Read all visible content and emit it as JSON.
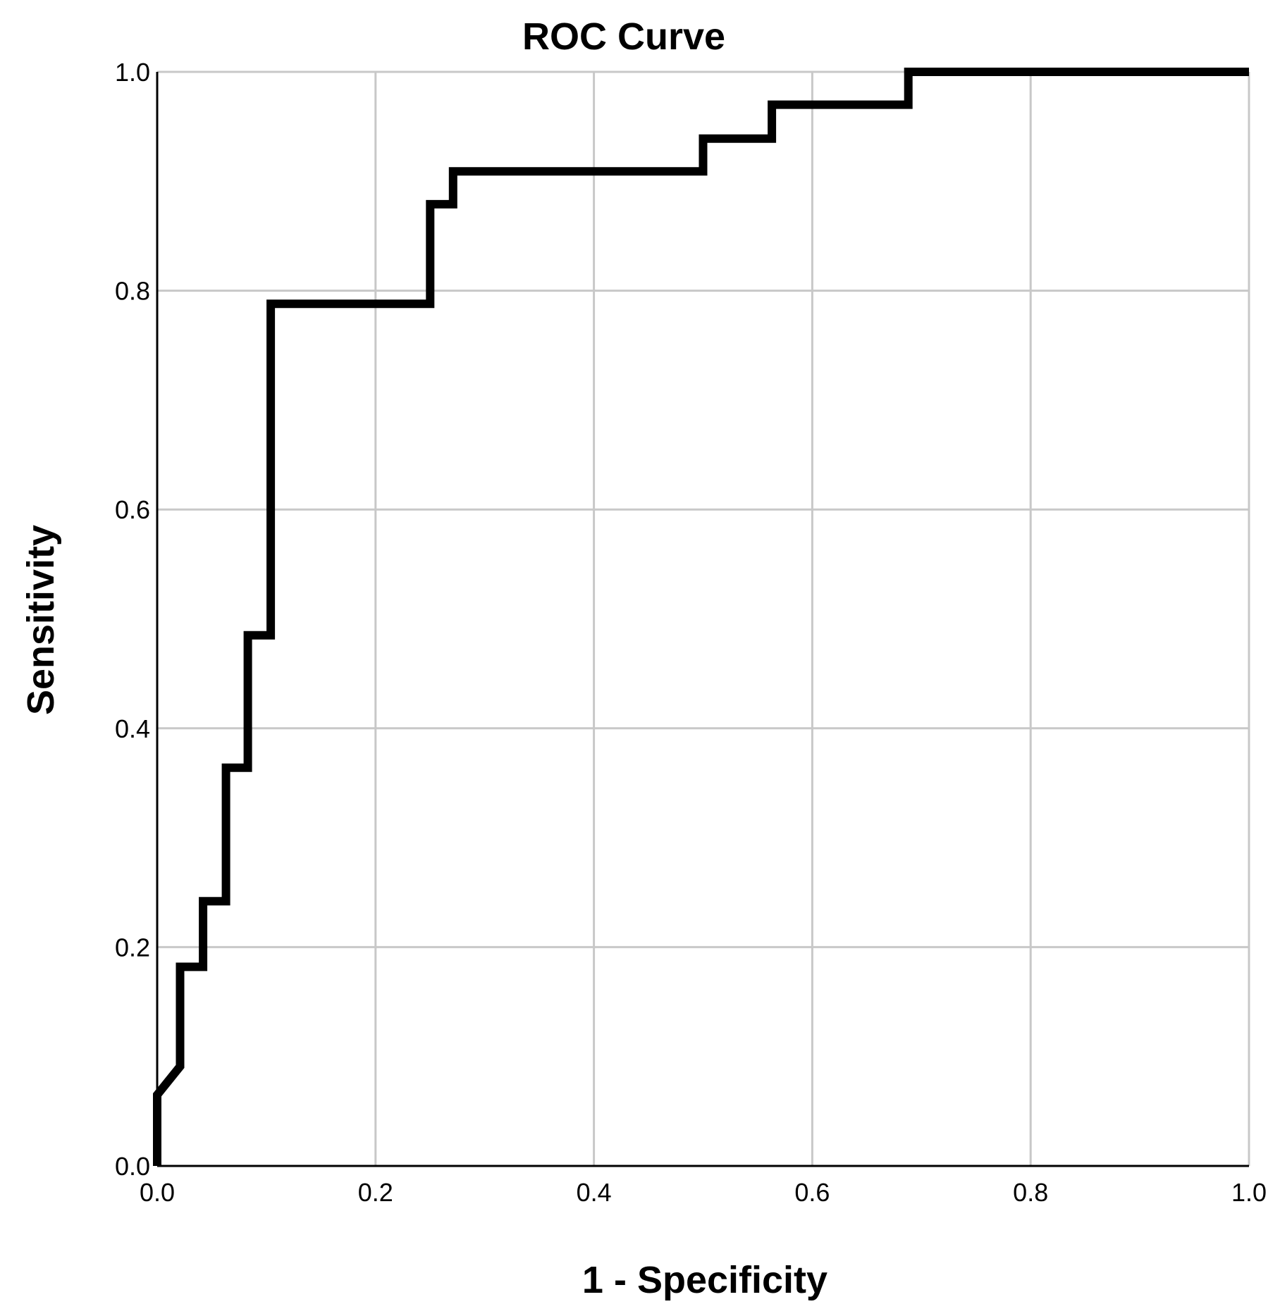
{
  "chart_data": {
    "type": "line",
    "title": "ROC Curve",
    "xlabel": "1 - Specificity",
    "ylabel": "Sensitivity",
    "xlim": [
      0,
      1
    ],
    "ylim": [
      0,
      1
    ],
    "x_ticks": [
      "0.0",
      "0.2",
      "0.4",
      "0.6",
      "0.8",
      "1.0"
    ],
    "y_ticks": [
      "0.0",
      "0.2",
      "0.4",
      "0.6",
      "0.8",
      "1.0"
    ],
    "grid": true,
    "colors": {
      "curve": "#000000",
      "grid": "#c8c8c8",
      "axis": "#000000"
    },
    "series": [
      {
        "x": [
          0.0,
          0.0,
          0.021,
          0.021,
          0.042,
          0.042,
          0.063,
          0.063,
          0.083,
          0.083,
          0.104,
          0.104,
          0.25,
          0.25,
          0.271,
          0.271,
          0.5,
          0.5,
          0.563,
          0.563,
          0.688,
          0.688,
          1.0
        ],
        "y": [
          0.0,
          0.065,
          0.091,
          0.182,
          0.182,
          0.242,
          0.242,
          0.364,
          0.364,
          0.485,
          0.485,
          0.788,
          0.788,
          0.879,
          0.879,
          0.909,
          0.909,
          0.939,
          0.939,
          0.97,
          0.97,
          1.0,
          1.0
        ]
      }
    ]
  }
}
